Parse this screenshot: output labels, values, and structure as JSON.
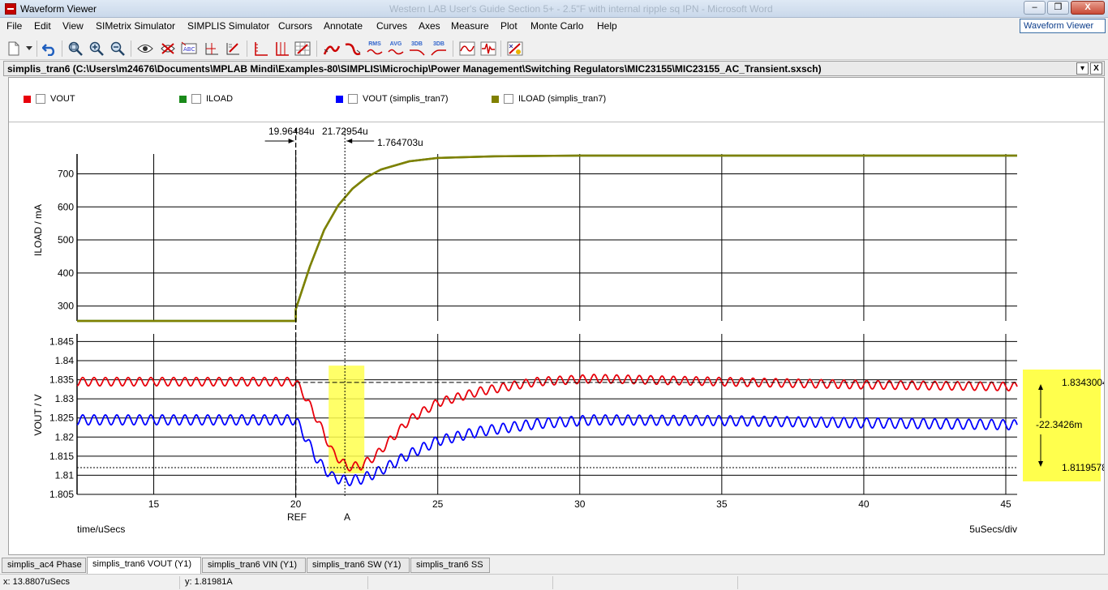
{
  "window": {
    "title": "Waveform Viewer",
    "background_title": "Western LAB User's Guide Section 5+ - 2.5\"F with internal ripple sq IPN - Microsoft Word",
    "minimize": "–",
    "maximize": "❐",
    "close": "X"
  },
  "menu": [
    "File",
    "Edit",
    "View",
    "SIMetrix Simulator",
    "SIMPLIS Simulator",
    "Cursors",
    "Annotate",
    "Curves",
    "Axes",
    "Measure",
    "Plot",
    "Monte Carlo",
    "Help"
  ],
  "viewer_select": "Waveform Viewer",
  "toolbar": {
    "text_icons": [
      "RMS",
      "AVG",
      "3DB",
      "3DB"
    ]
  },
  "document": {
    "title": "simplis_tran6 (C:\\Users\\m24676\\Documents\\MPLAB Mindi\\Examples-80\\SIMPLIS\\Microchip\\Power Management\\Switching Regulators\\MIC23155\\MIC23155_AC_Transient.sxsch)",
    "dropdown": "▾",
    "close": "X"
  },
  "legend": [
    {
      "label": "VOUT",
      "color": "#e8000b"
    },
    {
      "label": "ILOAD",
      "color": "#1a8a1a"
    },
    {
      "label": "VOUT (simplis_tran7)",
      "color": "#0000ff"
    },
    {
      "label": "ILOAD (simplis_tran7)",
      "color": "#808000"
    }
  ],
  "cursors": {
    "ref_time_label": "19.96484u",
    "a_time_label": "21.72954u",
    "delta_time_label": "1.764703u",
    "ref_label": "REF",
    "a_label": "A",
    "ref_x": 20.0,
    "a_x": 21.73,
    "v_upper_label": "1.8343004",
    "v_delta_label": "-22.3426m",
    "v_lower_label": "1.8119578",
    "v_upper": 1.8343,
    "v_lower": 1.812
  },
  "chart_data": [
    {
      "type": "line",
      "ylabel": "ILOAD / mA",
      "xlim": [
        12.3,
        45.4
      ],
      "ylim": [
        255,
        760
      ],
      "yticks": [
        300,
        400,
        500,
        600,
        700
      ],
      "grid": true,
      "series": [
        {
          "name": "ILOAD",
          "color": "#1a8a1a",
          "x": [
            12.3,
            20.0,
            20.0,
            20.5,
            21.0,
            21.5,
            22.0,
            22.5,
            23.0,
            24.0,
            25.0,
            27.0,
            30.0,
            45.4
          ],
          "y": [
            255,
            255,
            290,
            420,
            530,
            605,
            655,
            690,
            713,
            738,
            748,
            753,
            755,
            755
          ]
        },
        {
          "name": "ILOAD (simplis_tran7)",
          "color": "#808000",
          "x": [
            12.3,
            20.0,
            20.0,
            20.5,
            21.0,
            21.5,
            22.0,
            22.5,
            23.0,
            24.0,
            25.0,
            27.0,
            30.0,
            45.4
          ],
          "y": [
            255,
            255,
            290,
            420,
            530,
            605,
            655,
            690,
            713,
            738,
            748,
            753,
            755,
            755
          ]
        }
      ]
    },
    {
      "type": "line",
      "ylabel": "VOUT / V",
      "xlabel": "time/uSecs",
      "xscale_label": "5uSecs/div",
      "xlim": [
        12.3,
        45.4
      ],
      "ylim": [
        1.805,
        1.847
      ],
      "yticks": [
        1.805,
        1.81,
        1.815,
        1.82,
        1.825,
        1.83,
        1.835,
        1.84,
        1.845
      ],
      "xticks": [
        15,
        20,
        25,
        30,
        35,
        40,
        45
      ],
      "grid": true,
      "series": [
        {
          "name": "VOUT",
          "color": "#e8000b",
          "ripple_amplitude": 0.0011,
          "ripple_period_us": 0.4,
          "x": [
            12.3,
            20.0,
            20.3,
            20.8,
            21.3,
            21.8,
            22.3,
            22.8,
            23.3,
            24.0,
            25.0,
            26.5,
            28.5,
            30.5,
            35.0,
            40.0,
            45.4
          ],
          "y": [
            1.8345,
            1.8345,
            1.831,
            1.824,
            1.816,
            1.8122,
            1.8125,
            1.815,
            1.819,
            1.8245,
            1.829,
            1.832,
            1.8345,
            1.8353,
            1.8345,
            1.8337,
            1.8332
          ]
        },
        {
          "name": "VOUT (simplis_tran7)",
          "color": "#0000ff",
          "ripple_amplitude": 0.0013,
          "ripple_period_us": 0.4,
          "x": [
            12.3,
            20.0,
            20.3,
            20.8,
            21.3,
            21.8,
            22.3,
            22.8,
            23.3,
            24.0,
            25.0,
            26.5,
            28.5,
            30.5,
            35.0,
            40.0,
            45.4
          ],
          "y": [
            1.8245,
            1.8245,
            1.8205,
            1.8135,
            1.8095,
            1.8085,
            1.809,
            1.8105,
            1.8125,
            1.8155,
            1.819,
            1.8215,
            1.8235,
            1.8245,
            1.8243,
            1.8237,
            1.8232
          ]
        }
      ]
    }
  ],
  "tabs": [
    {
      "label": "simplis_ac4 Phase",
      "active": false
    },
    {
      "label": "simplis_tran6 VOUT (Y1)",
      "active": true
    },
    {
      "label": "simplis_tran6 VIN (Y1)",
      "active": false
    },
    {
      "label": "simplis_tran6 SW (Y1)",
      "active": false
    },
    {
      "label": "simplis_tran6 SS",
      "active": false
    }
  ],
  "status": {
    "x": "x: 13.8807uSecs",
    "y": "y: 1.81981A"
  },
  "colors": {
    "highlight": "#ffff4d",
    "grid": "#000000"
  }
}
